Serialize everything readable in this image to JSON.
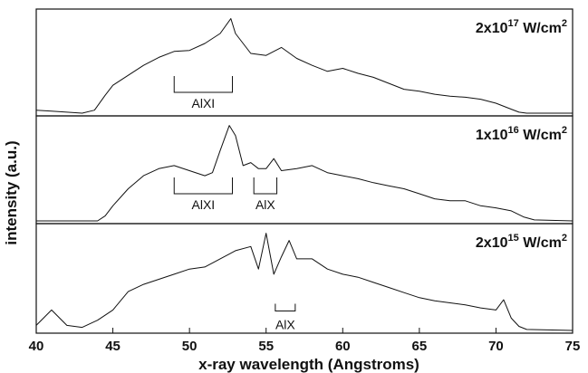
{
  "chart_data": {
    "type": "line",
    "xlabel": "x-ray wavelength (Angstroms)",
    "ylabel": "intensity (a.u.)",
    "xlim": [
      40,
      75
    ],
    "xticks": [
      40,
      45,
      50,
      55,
      60,
      65,
      70,
      75
    ],
    "grid": false,
    "panels": [
      {
        "label_base": "2x10",
        "label_exp": "17",
        "label_unit": " W/cm",
        "label_unit_exp": "2",
        "series": [
          {
            "x": [
              40,
              41,
              42,
              43,
              43.8,
              44.5,
              45,
              46,
              47,
              48,
              49,
              50,
              51,
              52,
              52.7,
              53,
              54,
              55,
              56,
              57,
              58,
              59,
              60,
              61,
              62,
              63,
              64,
              65,
              66,
              67,
              68,
              69,
              70,
              71,
              71.5,
              72,
              73,
              74,
              75
            ],
            "y": [
              0.03,
              0.02,
              0.01,
              0.0,
              0.03,
              0.18,
              0.28,
              0.38,
              0.48,
              0.56,
              0.62,
              0.63,
              0.7,
              0.8,
              0.95,
              0.8,
              0.6,
              0.58,
              0.66,
              0.55,
              0.48,
              0.42,
              0.45,
              0.4,
              0.36,
              0.3,
              0.24,
              0.22,
              0.19,
              0.17,
              0.16,
              0.14,
              0.1,
              0.04,
              0.01,
              0.0,
              0.0,
              0.0,
              0.0
            ]
          }
        ],
        "brackets": [
          {
            "label": "AlXI",
            "x0": 49,
            "x1": 52.8
          }
        ]
      },
      {
        "label_base": "1x10",
        "label_exp": "16",
        "label_unit": " W/cm",
        "label_unit_exp": "2",
        "series": [
          {
            "x": [
              40,
              42,
              44,
              44.5,
              45,
              46,
              47,
              48,
              49,
              50,
              51,
              51.5,
              52,
              52.6,
              53,
              53.5,
              54,
              54.5,
              55,
              55.5,
              56,
              57,
              58,
              59,
              60,
              61,
              62,
              63,
              64,
              65,
              66,
              67,
              68,
              69,
              70,
              71,
              71.8,
              72.5,
              75
            ],
            "y": [
              0.0,
              0.0,
              0.0,
              0.05,
              0.15,
              0.32,
              0.45,
              0.52,
              0.55,
              0.5,
              0.45,
              0.48,
              0.7,
              0.95,
              0.85,
              0.55,
              0.58,
              0.52,
              0.52,
              0.62,
              0.5,
              0.52,
              0.55,
              0.48,
              0.45,
              0.42,
              0.38,
              0.35,
              0.32,
              0.27,
              0.22,
              0.2,
              0.2,
              0.15,
              0.13,
              0.1,
              0.04,
              0.01,
              0.0
            ]
          }
        ],
        "brackets": [
          {
            "label": "AlXI",
            "x0": 49,
            "x1": 52.8
          },
          {
            "label": "AlX",
            "x0": 54.2,
            "x1": 55.7
          }
        ]
      },
      {
        "label_base": "2x10",
        "label_exp": "15",
        "label_unit": " W/cm",
        "label_unit_exp": "2",
        "series": [
          {
            "x": [
              40,
              41,
              42,
              43,
              44,
              45,
              46,
              47,
              48,
              49,
              50,
              51,
              52,
              53,
              54,
              54.5,
              55,
              55.5,
              56,
              56.5,
              57,
              58,
              59,
              60,
              61,
              62,
              63,
              64,
              65,
              66,
              67,
              68,
              69,
              70,
              70.5,
              71,
              71.5,
              72,
              75
            ],
            "y": [
              0.05,
              0.2,
              0.05,
              0.03,
              0.1,
              0.2,
              0.38,
              0.45,
              0.5,
              0.55,
              0.6,
              0.62,
              0.7,
              0.78,
              0.82,
              0.6,
              0.95,
              0.55,
              0.72,
              0.88,
              0.7,
              0.7,
              0.6,
              0.55,
              0.52,
              0.47,
              0.42,
              0.37,
              0.32,
              0.29,
              0.27,
              0.25,
              0.22,
              0.2,
              0.3,
              0.12,
              0.04,
              0.01,
              0.0
            ]
          }
        ],
        "brackets": [
          {
            "label": "AlX",
            "x0": 55.6,
            "x1": 56.9
          }
        ]
      }
    ]
  }
}
